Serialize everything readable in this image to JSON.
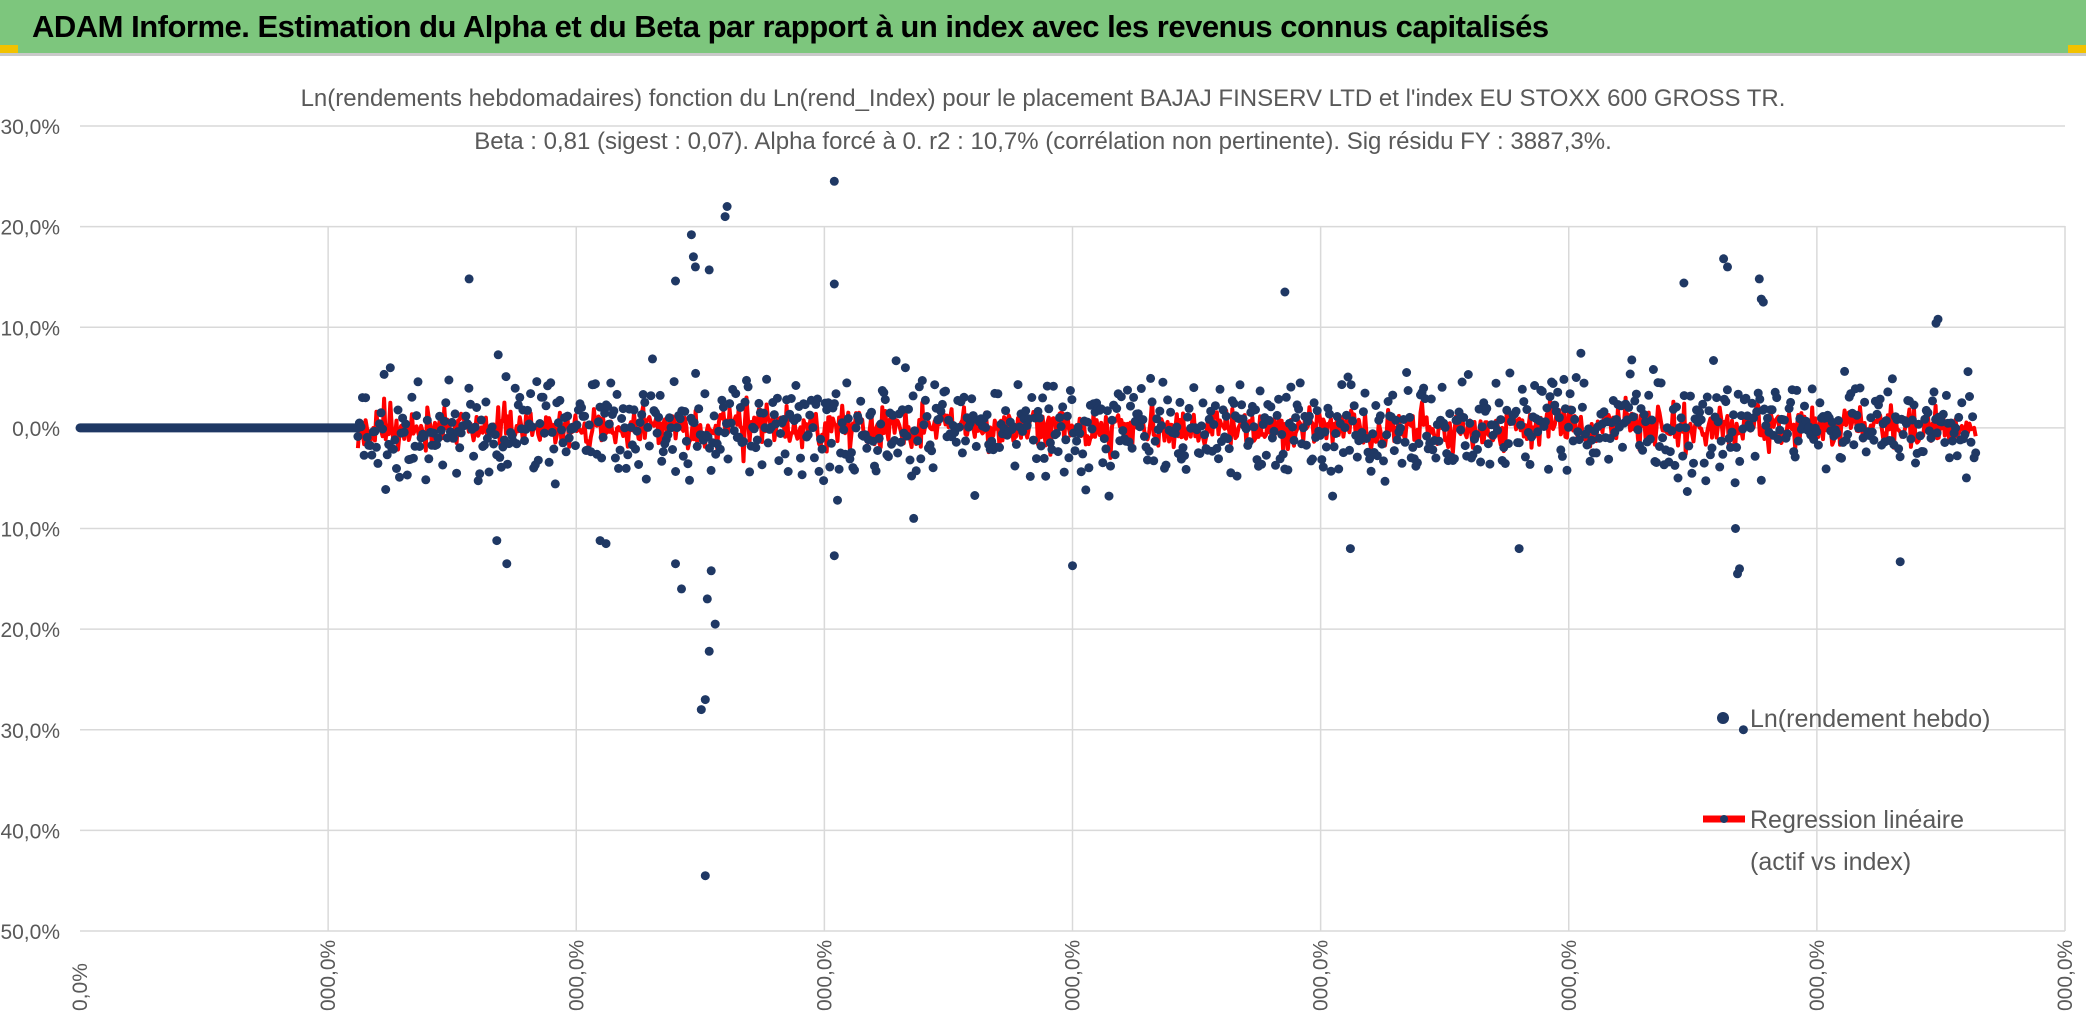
{
  "banner": {
    "title": "ADAM Informe. Estimation du Alpha et du Beta par rapport à un index avec les revenus connus capitalisés"
  },
  "colors": {
    "banner_bg": "#7dc67d",
    "point_color": "#1f3864",
    "regression_color": "#ff0000",
    "grid_color": "#d9d9d9",
    "text_color": "#595959"
  },
  "chart_data": {
    "type": "scatter",
    "title": "Ln(rendements hebdomadaires) fonction du Ln(rend_Index) pour le placement BAJAJ FINSERV LTD et l'index EU STOXX 600 GROSS TR.",
    "subtitle": "Beta : 0,81 (sigest : 0,07). Alpha forcé à 0. r2 : 10,7% (corrélation non pertinente). Sig résidu FY : 3887,3%.",
    "ylim": [
      -0.5,
      0.3
    ],
    "y_ticks": [
      0.3,
      0.2,
      0.1,
      0.0,
      -0.1,
      -0.2,
      -0.3,
      -0.4,
      -0.5
    ],
    "y_tick_labels": [
      "30,0%",
      "20,0%",
      "10,0%",
      "0,0%",
      "-10,0%",
      "-20,0%",
      "-30,0%",
      "-40,0%",
      "-50,0%"
    ],
    "x_tick_labels": [
      "0,0%",
      "000,0%",
      "000,0%",
      "000,0%",
      "000,0%",
      "000,0%",
      "000,0%",
      "000,0%",
      "000,0%"
    ],
    "grid": true,
    "legend_position": "right",
    "series": [
      {
        "name": "Ln(rendement hebdo)",
        "kind": "points",
        "notable_points": [
          {
            "xi": 0.38,
            "y": 0.245
          },
          {
            "xi": 0.326,
            "y": 0.22
          },
          {
            "xi": 0.325,
            "y": 0.21
          },
          {
            "xi": 0.308,
            "y": 0.192
          },
          {
            "xi": 0.309,
            "y": 0.17
          },
          {
            "xi": 0.31,
            "y": 0.16
          },
          {
            "xi": 0.317,
            "y": 0.157
          },
          {
            "xi": 0.3,
            "y": 0.146
          },
          {
            "xi": 0.196,
            "y": 0.148
          },
          {
            "xi": 0.38,
            "y": 0.143
          },
          {
            "xi": 0.607,
            "y": 0.135
          },
          {
            "xi": 0.808,
            "y": 0.144
          },
          {
            "xi": 0.828,
            "y": 0.168
          },
          {
            "xi": 0.83,
            "y": 0.16
          },
          {
            "xi": 0.846,
            "y": 0.148
          },
          {
            "xi": 0.847,
            "y": 0.128
          },
          {
            "xi": 0.848,
            "y": 0.125
          },
          {
            "xi": 0.936,
            "y": 0.108
          },
          {
            "xi": 0.935,
            "y": 0.104
          },
          {
            "xi": 0.313,
            "y": -0.28
          },
          {
            "xi": 0.315,
            "y": -0.27
          },
          {
            "xi": 0.317,
            "y": -0.222
          },
          {
            "xi": 0.32,
            "y": -0.195
          },
          {
            "xi": 0.316,
            "y": -0.17
          },
          {
            "xi": 0.318,
            "y": -0.142
          },
          {
            "xi": 0.3,
            "y": -0.135
          },
          {
            "xi": 0.303,
            "y": -0.16
          },
          {
            "xi": 0.315,
            "y": -0.445
          },
          {
            "xi": 0.265,
            "y": -0.115
          },
          {
            "xi": 0.262,
            "y": -0.112
          },
          {
            "xi": 0.21,
            "y": -0.112
          },
          {
            "xi": 0.215,
            "y": -0.135
          },
          {
            "xi": 0.38,
            "y": -0.127
          },
          {
            "xi": 0.42,
            "y": -0.09
          },
          {
            "xi": 0.5,
            "y": -0.137
          },
          {
            "xi": 0.64,
            "y": -0.12
          },
          {
            "xi": 0.725,
            "y": -0.12
          },
          {
            "xi": 0.838,
            "y": -0.3
          },
          {
            "xi": 0.836,
            "y": -0.14
          },
          {
            "xi": 0.835,
            "y": -0.145
          },
          {
            "xi": 0.834,
            "y": -0.1
          },
          {
            "xi": 0.917,
            "y": -0.133
          }
        ]
      },
      {
        "name": "Regression linéaire\n(actif vs index)",
        "kind": "line",
        "beta": 0.81,
        "alpha": 0
      }
    ],
    "legend": {
      "points_label": "Ln(rendement hebdo)",
      "line_label_1": "Regression linéaire",
      "line_label_2": "(actif vs index)"
    }
  }
}
